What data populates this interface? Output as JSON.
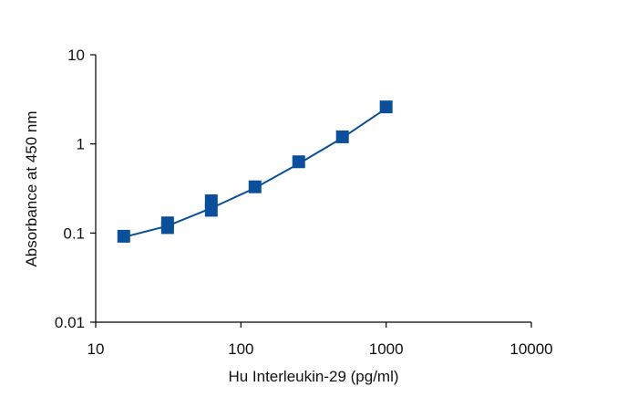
{
  "chart_data": {
    "type": "scatter",
    "x_label": "Hu Interleukin-29 (pg/ml)",
    "y_label": "Absorbance at 450 nm",
    "xlog": true,
    "ylog": true,
    "xlim": [
      10,
      10000
    ],
    "ylim": [
      0.01,
      10
    ],
    "xticks": [
      10,
      100,
      1000,
      10000
    ],
    "yticks": [
      0.01,
      0.1,
      1,
      10
    ],
    "series": [
      {
        "type": "scatter",
        "color": "#0a4f9c",
        "x": [
          15.6,
          31.25,
          31.25,
          62.5,
          62.5,
          125,
          250,
          500,
          1000
        ],
        "values": [
          0.092,
          0.13,
          0.115,
          0.23,
          0.18,
          0.33,
          0.63,
          1.2,
          2.6
        ]
      },
      {
        "type": "line",
        "color": "#0a4f9c",
        "x": [
          15.6,
          31.25,
          62.5,
          125,
          250,
          500,
          1000
        ],
        "values": [
          0.09,
          0.12,
          0.19,
          0.32,
          0.6,
          1.17,
          2.5
        ]
      }
    ]
  }
}
